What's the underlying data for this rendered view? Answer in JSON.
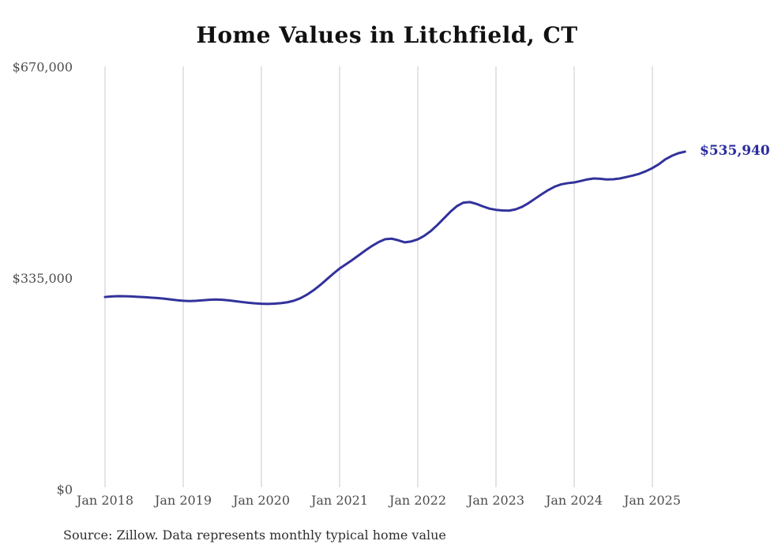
{
  "page": {
    "title": "Home Values in Litchfield, CT",
    "source_note": "Source: Zillow. Data represents monthly typical home value"
  },
  "colors": {
    "line": "#32329c",
    "end_label": "#2b2b9e",
    "grid": "#c9c9c9",
    "axis_text": "#4d4d4d",
    "title_text": "#111111",
    "source_text": "#2e2e2e",
    "background": "#ffffff"
  },
  "chart_data": {
    "type": "line",
    "title": "Home Values in Litchfield, CT",
    "series_name": "Monthly typical home value",
    "unit": "USD",
    "x_start": "Jan 2018",
    "x_end": "Jun 2025",
    "x_interval": "1 month",
    "x_tick_labels": [
      "Jan 2018",
      "Jan 2019",
      "Jan 2020",
      "Jan 2021",
      "Jan 2022",
      "Jan 2023",
      "Jan 2024",
      "Jan 2025"
    ],
    "y_ticks": [
      {
        "label": "$0",
        "value": 0
      },
      {
        "label": "$335,000",
        "value": 335000
      },
      {
        "label": "$670,000",
        "value": 670000
      }
    ],
    "ylim": [
      0,
      670000
    ],
    "grid": "vertical-only",
    "legend": "none",
    "end_label": "$535,940",
    "end_value": 535940,
    "values": [
      305500,
      306400,
      306900,
      306700,
      306300,
      305800,
      305200,
      304500,
      303800,
      302900,
      301700,
      300400,
      299400,
      299000,
      299400,
      300300,
      301100,
      301500,
      301000,
      300100,
      298900,
      297500,
      296300,
      295400,
      294800,
      294500,
      294900,
      295700,
      297100,
      299600,
      303600,
      309200,
      316200,
      324200,
      333200,
      342200,
      350600,
      357600,
      364600,
      372100,
      379600,
      386600,
      392600,
      397100,
      397900,
      395400,
      392100,
      393600,
      396900,
      402600,
      410100,
      419600,
      430100,
      440600,
      449600,
      455100,
      456000,
      453100,
      449100,
      445600,
      443700,
      442700,
      442400,
      444400,
      448400,
      454400,
      461400,
      468400,
      474900,
      480400,
      484100,
      486000,
      487100,
      489400,
      491900,
      493400,
      492900,
      491800,
      492200,
      493400,
      495700,
      498000,
      500900,
      504900,
      509900,
      516000,
      523900,
      529400,
      533500,
      535940
    ]
  }
}
